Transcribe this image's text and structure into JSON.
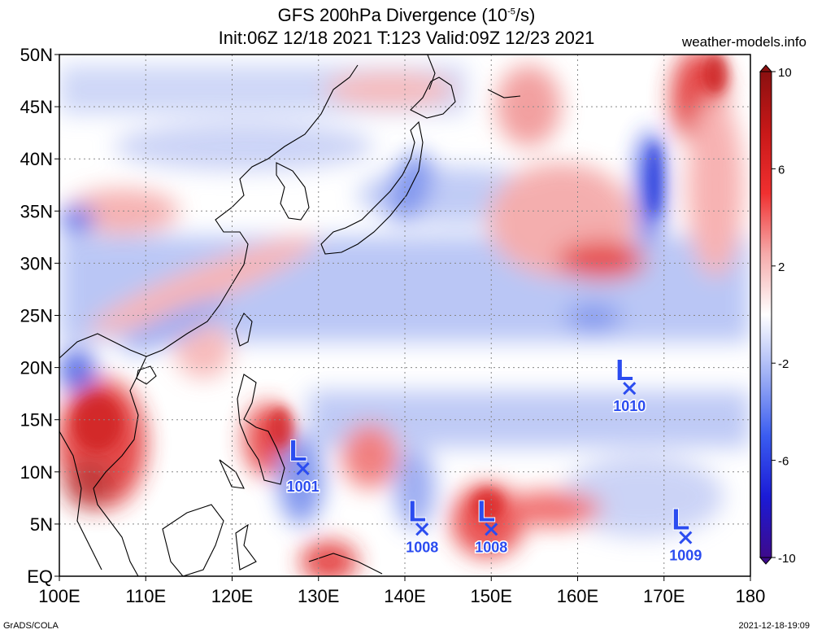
{
  "title_line1": "GFS 200hPa Divergence (10",
  "title_exp": "-5",
  "title_unit_end": "/s)",
  "title_line2": "Init:06Z 12/18 2021 T:123 Valid:09Z 12/23 2021",
  "source_site": "weather-models.info",
  "footer_left": "GrADS/COLA",
  "footer_right": "2021-12-18-19:09",
  "map": {
    "lon_labels": [
      "100E",
      "110E",
      "120E",
      "130E",
      "140E",
      "150E",
      "160E",
      "170E",
      "180"
    ],
    "lat_labels": [
      "50N",
      "45N",
      "40N",
      "35N",
      "30N",
      "25N",
      "20N",
      "15N",
      "10N",
      "5N",
      "EQ"
    ],
    "lon_values": [
      100,
      110,
      120,
      130,
      140,
      150,
      160,
      170,
      180
    ],
    "lat_values": [
      50,
      45,
      40,
      35,
      30,
      25,
      20,
      15,
      10,
      5,
      0
    ],
    "extent": {
      "lon_min": 100,
      "lon_max": 180,
      "lat_min": 0,
      "lat_max": 50
    },
    "grid_lines": "dotted",
    "positive_color": "#e8141c",
    "negative_color": "#1a33e8",
    "coastline_color": "#000000",
    "low_marker_color": "#2b4cf0"
  },
  "colorbar": {
    "labels": [
      "10",
      "6",
      "2",
      "-2",
      "-6",
      "-10"
    ],
    "ticks": [
      10,
      6,
      2,
      -2,
      -6,
      -10
    ],
    "range": [
      -10,
      10
    ],
    "stops": [
      "#3d0a8c",
      "#1b1bd6",
      "#3a5cf0",
      "#9fb0f5",
      "#ffffff",
      "#f5aaaa",
      "#f03030",
      "#c81818",
      "#8b1010"
    ]
  },
  "lows": [
    {
      "label": "L",
      "pressure": "1001",
      "lon": 128.2,
      "lat": 10.3
    },
    {
      "label": "L",
      "pressure": "1008",
      "lon": 142.0,
      "lat": 4.5
    },
    {
      "label": "L",
      "pressure": "1008",
      "lon": 150.0,
      "lat": 4.5
    },
    {
      "label": "L",
      "pressure": "1010",
      "lon": 166.0,
      "lat": 18.0
    },
    {
      "label": "L",
      "pressure": "1009",
      "lon": 172.5,
      "lat": 3.7
    }
  ]
}
